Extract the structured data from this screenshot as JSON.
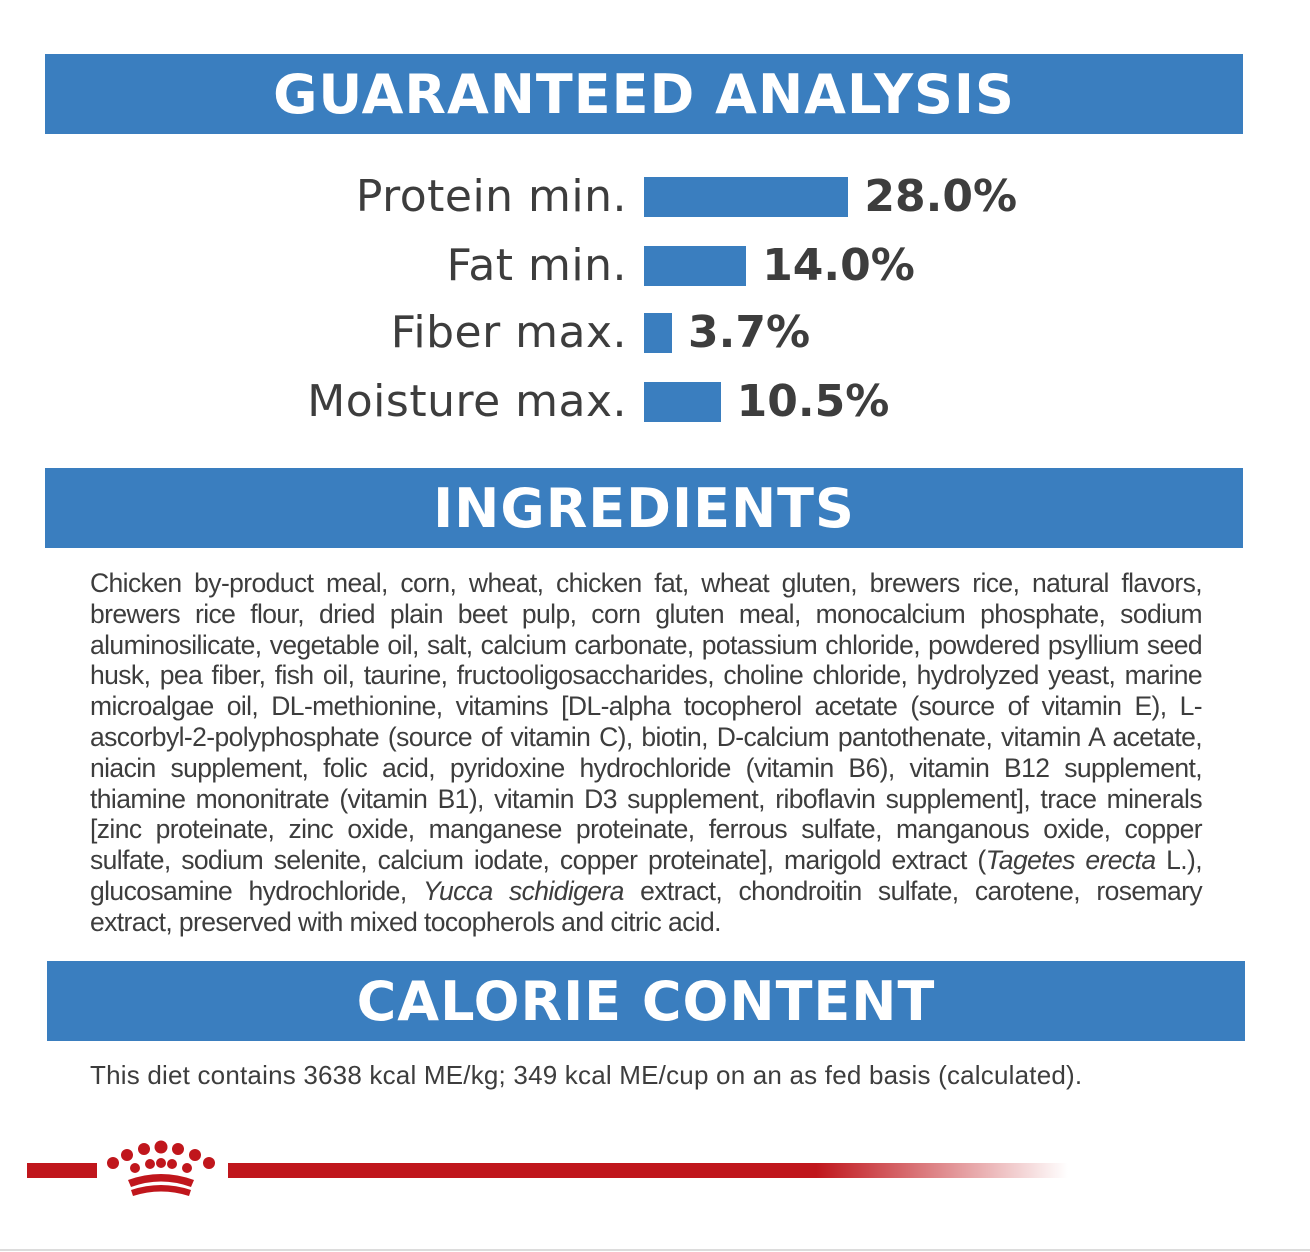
{
  "guaranteed_analysis": {
    "title": "GUARANTEED ANALYSIS",
    "items": [
      {
        "label": "Protein min.",
        "value": "28.0%",
        "percent": 28.0
      },
      {
        "label": "Fat min.",
        "value": "14.0%",
        "percent": 14.0
      },
      {
        "label": "Fiber max.",
        "value": "3.7%",
        "percent": 3.7
      },
      {
        "label": "Moisture max.",
        "value": "10.5%",
        "percent": 10.5
      }
    ]
  },
  "ingredients": {
    "title": "INGREDIENTS",
    "text_before_italic_1": "Chicken by-product meal, corn, wheat, chicken fat, wheat gluten, brewers rice, natural flavors, brewers rice flour, dried plain beet pulp, corn gluten meal, monocalcium phosphate, sodium aluminosilicate, vegetable oil, salt, calcium carbonate, potassium chloride, powdered psyllium seed husk, pea fiber, fish oil, taurine, fructooligosaccharides, choline chloride, hydrolyzed yeast, marine microalgae oil, DL-methionine, vitamins [DL-alpha tocopherol acetate (source of vitamin E), L-ascorbyl-2-polyphosphate (source of vitamin C), biotin, D-calcium pantothenate, vitamin A acetate, niacin supplement, folic acid, pyridoxine hydrochloride (vitamin B6), vitamin B12 supplement, thiamine mononitrate (vitamin B1), vitamin D3 supplement, riboflavin supplement], trace minerals [zinc proteinate, zinc oxide, manganese proteinate, ferrous sulfate, manganous oxide, copper sulfate, sodium selenite, calcium iodate, copper proteinate], marigold extract (",
    "italic_1": "Tagetes erecta",
    "text_between_italics": " L.), glucosamine hydrochloride, ",
    "italic_2": "Yucca schidigera",
    "text_after_italic_2": " extract, chondroitin sulfate, carotene, rosemary extract, preserved with mixed tocopherols and citric acid."
  },
  "calorie_content": {
    "title": "CALORIE CONTENT",
    "text": "This diet contains 3638 kcal ME/kg; 349 kcal ME/cup on an as fed basis (calculated)."
  },
  "colors": {
    "banner_blue": "#3a7ebf",
    "brand_red": "#c0161c",
    "text_gray": "#3d3d3d"
  },
  "icons": {
    "brand_logo": "crown-icon"
  }
}
